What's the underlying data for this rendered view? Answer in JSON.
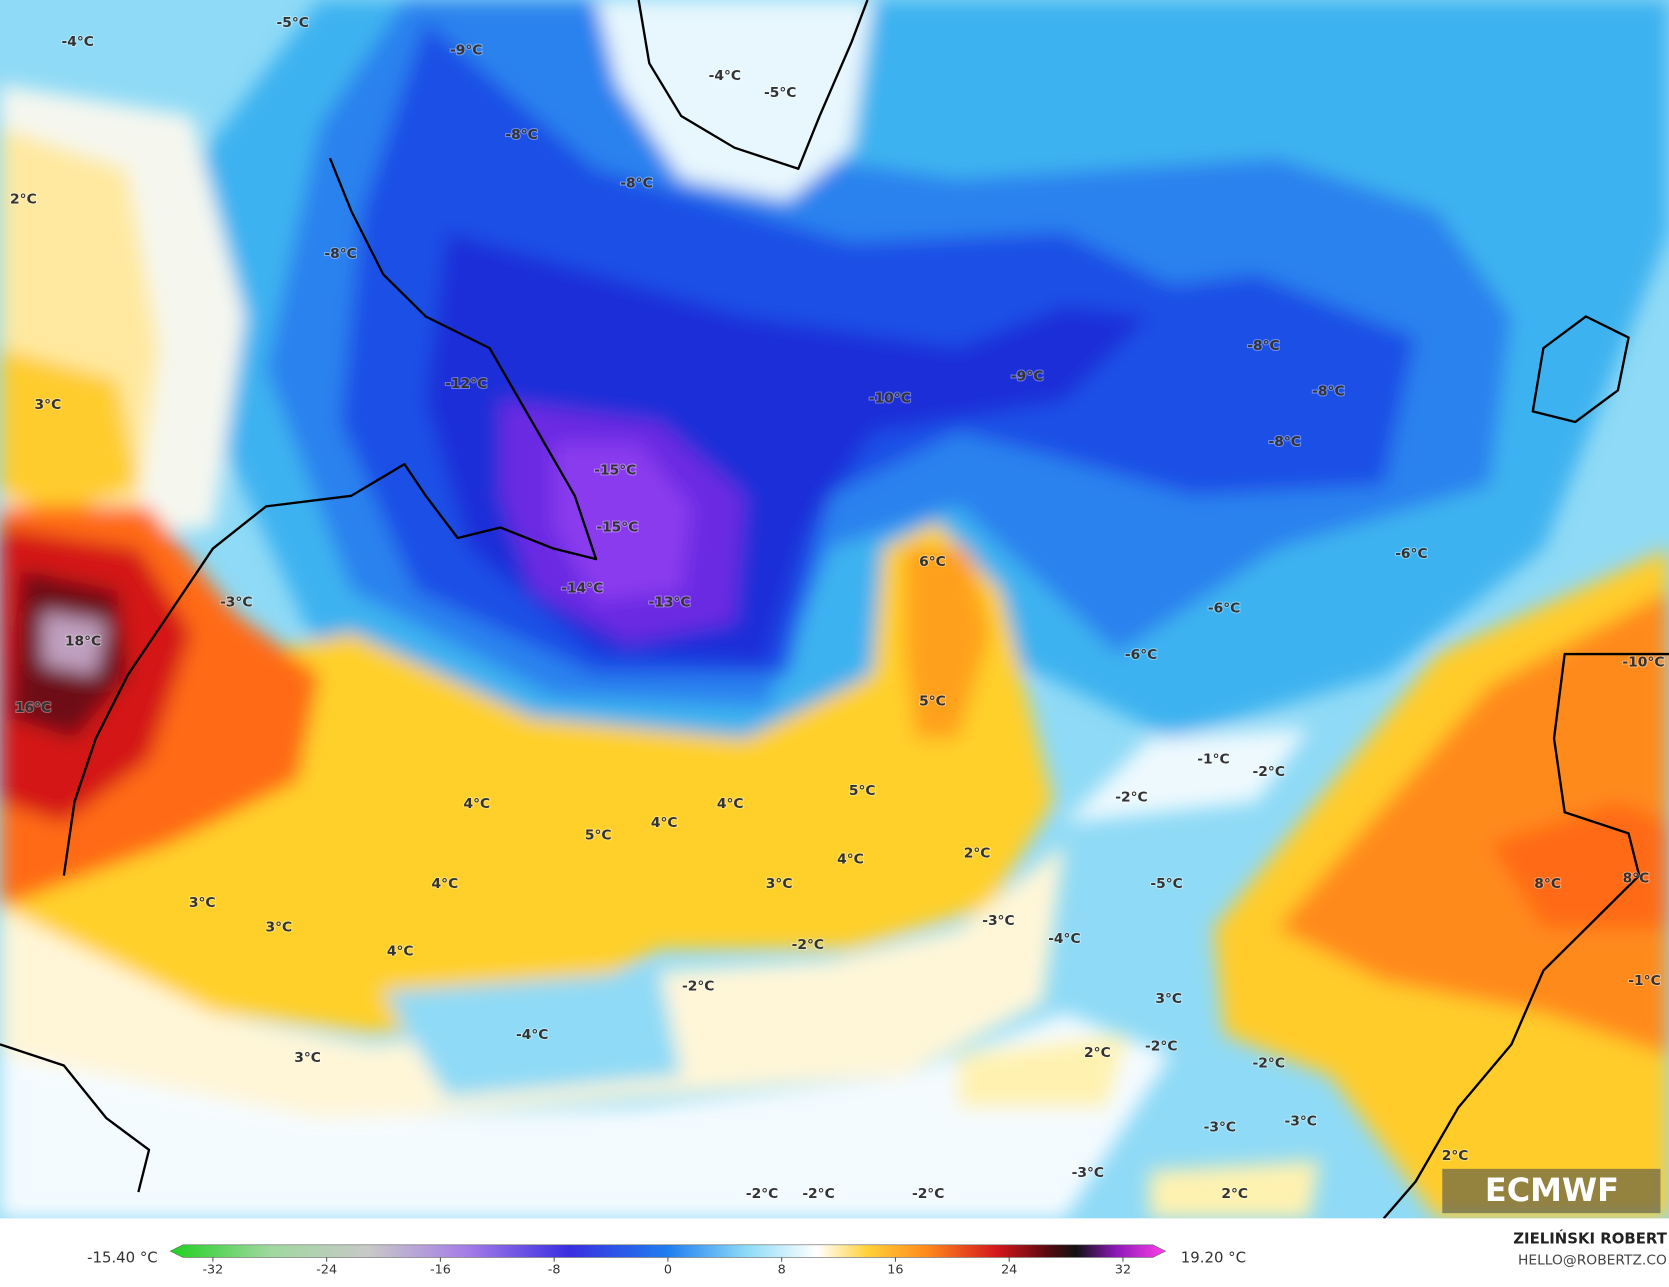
{
  "map": {
    "labels": [
      "-5°C",
      "-4°C",
      "-9°C",
      "-8°C",
      "-8°C",
      "-4°C",
      "-5°C",
      "2°C",
      "-8°C",
      "-12°C",
      "-10°C",
      "-9°C",
      "-8°C",
      "-8°C",
      "-8°C",
      "3°C",
      "-15°C",
      "-15°C",
      "-14°C",
      "-13°C",
      "6°C",
      "-6°C",
      "-6°C",
      "-6°C",
      "-3°C",
      "18°C",
      "16°C",
      "-10°C",
      "5°C",
      "-1°C",
      "-2°C",
      "-2°C",
      "4°C",
      "5°C",
      "4°C",
      "4°C",
      "5°C",
      "4°C",
      "3°C",
      "2°C",
      "4°C",
      "3°C",
      "3°C",
      "4°C",
      "-2°C",
      "-3°C",
      "-4°C",
      "-5°C",
      "8°C",
      "8°C",
      "-2°C",
      "-4°C",
      "3°C",
      "3°C",
      "2°C",
      "-2°C",
      "-2°C",
      "-1°C",
      "-3°C",
      "-3°C",
      "-3°C",
      "2°C",
      "-2°C",
      "-2°C",
      "-2°C",
      "2°C"
    ],
    "logo": "ECMWF",
    "colorbar": {
      "min_label": "-15.40 °C",
      "max_label": "19.20 °C",
      "ticks": [
        "-32",
        "-24",
        "-16",
        "-8",
        "0",
        "8",
        "16",
        "24",
        "32"
      ]
    },
    "credit": {
      "name": "ZIELIŃSKI ROBERT",
      "contact": "HELLO@ROBERTZ.CO"
    }
  }
}
